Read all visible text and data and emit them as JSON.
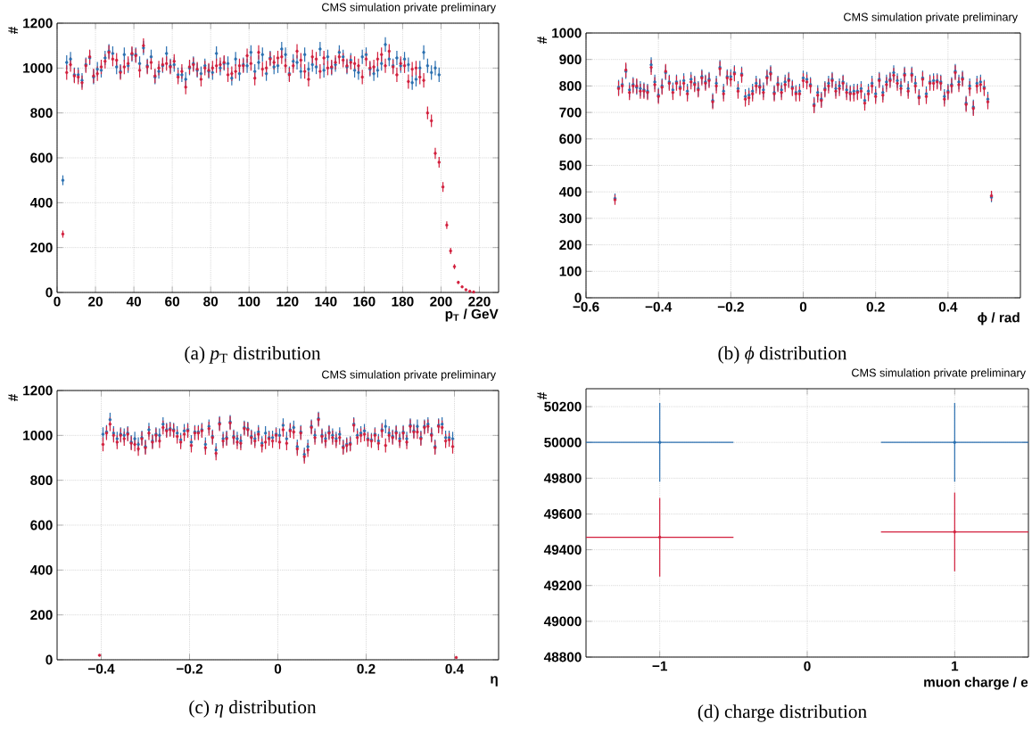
{
  "chart_data": [
    {
      "type": "scatter",
      "title": "CMS simulation private preliminary",
      "xlabel": "p$_{T}$ / GeV",
      "ylabel": "#",
      "annotations": [
        "(a) *p*$_{T}$ distribution"
      ],
      "xlim": [
        0,
        230
      ],
      "ylim": [
        0,
        1200
      ],
      "xticks": [
        0,
        20,
        40,
        60,
        80,
        100,
        120,
        140,
        160,
        180,
        200,
        220
      ],
      "yticks": [
        0,
        200,
        400,
        600,
        800,
        1000,
        1200
      ],
      "grid": true,
      "series": [
        {
          "color": "#2a6fb0",
          "x": [
            3,
            5,
            7,
            9,
            11,
            13,
            15,
            17,
            19,
            21,
            23,
            25,
            27,
            29,
            31,
            33,
            35,
            37,
            39,
            41,
            43,
            45,
            47,
            49,
            51,
            53,
            55,
            57,
            59,
            61,
            63,
            65,
            67,
            69,
            71,
            73,
            75,
            77,
            79,
            81,
            83,
            85,
            87,
            89,
            91,
            93,
            95,
            97,
            99,
            101,
            103,
            105,
            107,
            109,
            111,
            113,
            115,
            117,
            119,
            121,
            123,
            125,
            127,
            129,
            131,
            133,
            135,
            137,
            139,
            141,
            143,
            145,
            147,
            149,
            151,
            153,
            155,
            157,
            159,
            161,
            163,
            165,
            167,
            169,
            171,
            173,
            175,
            177,
            179,
            181,
            183,
            185,
            187,
            189,
            191,
            193,
            195,
            197,
            199
          ],
          "values": [
            500,
            1025,
            1040,
            970,
            970,
            945,
            1015,
            1045,
            960,
            995,
            990,
            1045,
            1075,
            1065,
            1005,
            985,
            1060,
            1010,
            1060,
            1060,
            1020,
            1090,
            1010,
            1050,
            960,
            985,
            1010,
            1065,
            1010,
            1015,
            970,
            970,
            950,
            1000,
            1020,
            990,
            975,
            1010,
            985,
            980,
            1065,
            1000,
            1020,
            1020,
            955,
            1040,
            975,
            1015,
            1010,
            1070,
            985,
            1025,
            1060,
            975,
            1045,
            1005,
            1010,
            1085,
            1060,
            975,
            1030,
            1025,
            985,
            1060,
            995,
            1015,
            1005,
            1085,
            990,
            1050,
            1000,
            1015,
            1070,
            1050,
            1005,
            1035,
            990,
            980,
            1050,
            1060,
            995,
            975,
            990,
            1020,
            1105,
            1040,
            1010,
            1045,
            1010,
            1040,
            1015,
            935,
            950,
            1000,
            1070,
            1010,
            980,
            1000,
            970
          ],
          "errors": [
            22,
            32,
            32,
            32,
            32,
            32,
            32,
            32,
            32,
            32,
            32,
            32,
            32,
            32,
            32,
            32,
            32,
            32,
            32,
            32,
            32,
            32,
            32,
            32,
            32,
            32,
            32,
            32,
            32,
            32,
            32,
            32,
            32,
            32,
            32,
            32,
            32,
            32,
            32,
            32,
            32,
            32,
            32,
            32,
            32,
            32,
            32,
            32,
            32,
            32,
            32,
            32,
            32,
            32,
            32,
            32,
            32,
            32,
            32,
            32,
            32,
            32,
            32,
            32,
            32,
            32,
            32,
            32,
            32,
            32,
            32,
            32,
            32,
            32,
            32,
            32,
            32,
            32,
            32,
            32,
            32,
            32,
            32,
            32,
            32,
            32,
            32,
            32,
            32,
            32,
            32,
            32,
            32,
            32,
            32,
            32,
            32,
            32,
            32
          ]
        },
        {
          "color": "#d21f3c",
          "x": [
            3,
            5,
            7,
            9,
            11,
            13,
            15,
            17,
            19,
            21,
            23,
            25,
            27,
            29,
            31,
            33,
            35,
            37,
            39,
            41,
            43,
            45,
            47,
            49,
            51,
            53,
            55,
            57,
            59,
            61,
            63,
            65,
            67,
            69,
            71,
            73,
            75,
            77,
            79,
            81,
            83,
            85,
            87,
            89,
            91,
            93,
            95,
            97,
            99,
            101,
            103,
            105,
            107,
            109,
            111,
            113,
            115,
            117,
            119,
            121,
            123,
            125,
            127,
            129,
            131,
            133,
            135,
            137,
            139,
            141,
            143,
            145,
            147,
            149,
            151,
            153,
            155,
            157,
            159,
            161,
            163,
            165,
            167,
            169,
            171,
            173,
            175,
            177,
            179,
            181,
            183,
            185,
            187,
            189,
            191,
            193,
            195,
            197,
            199,
            201,
            203,
            205,
            207,
            209,
            211,
            213,
            215,
            217
          ],
          "values": [
            260,
            980,
            1015,
            965,
            960,
            935,
            1010,
            1050,
            965,
            975,
            1005,
            1030,
            1070,
            1040,
            1035,
            980,
            1005,
            1020,
            1065,
            1055,
            990,
            1100,
            1005,
            1025,
            965,
            1000,
            1015,
            1020,
            1005,
            1030,
            960,
            985,
            915,
            1005,
            1015,
            995,
            950,
            1000,
            990,
            1000,
            1010,
            1015,
            1025,
            970,
            975,
            985,
            1010,
            1010,
            1055,
            1020,
            955,
            1070,
            995,
            1000,
            1040,
            1025,
            1045,
            1050,
            1010,
            970,
            1010,
            1075,
            1035,
            985,
            950,
            1050,
            1040,
            985,
            1045,
            1000,
            1005,
            1025,
            1050,
            1035,
            1010,
            1025,
            1020,
            1010,
            960,
            1040,
            1000,
            1005,
            1040,
            1060,
            1010,
            1075,
            1005,
            970,
            1020,
            1010,
            940,
            995,
            1000,
            960,
            945,
            800,
            765,
            620,
            580,
            470,
            300,
            185,
            115,
            45,
            25,
            12,
            5,
            2
          ],
          "errors": [
            16,
            32,
            32,
            32,
            32,
            32,
            32,
            32,
            32,
            32,
            32,
            32,
            32,
            32,
            32,
            32,
            32,
            32,
            32,
            32,
            32,
            32,
            32,
            32,
            32,
            32,
            32,
            32,
            32,
            32,
            32,
            32,
            32,
            32,
            32,
            32,
            32,
            32,
            32,
            32,
            32,
            32,
            32,
            32,
            32,
            32,
            32,
            32,
            32,
            32,
            32,
            32,
            32,
            32,
            32,
            32,
            32,
            32,
            32,
            32,
            32,
            32,
            32,
            32,
            32,
            32,
            32,
            32,
            32,
            32,
            32,
            32,
            32,
            32,
            32,
            32,
            32,
            32,
            32,
            32,
            32,
            32,
            32,
            32,
            32,
            32,
            32,
            32,
            32,
            32,
            32,
            32,
            32,
            32,
            32,
            28,
            28,
            25,
            24,
            22,
            17,
            14,
            11,
            7,
            null,
            null,
            null,
            null
          ]
        }
      ]
    },
    {
      "type": "scatter",
      "title": "CMS simulation private preliminary",
      "xlabel": "ϕ / rad",
      "ylabel": "#",
      "annotations": [
        "(b) *ϕ* distribution"
      ],
      "xlim": [
        -0.6,
        0.6
      ],
      "ylim": [
        0,
        1000
      ],
      "xticks": [
        {
          "value": -0.6,
          "label": "−0.6"
        },
        {
          "value": -0.4,
          "label": "−0.4"
        },
        {
          "value": -0.2,
          "label": "−0.2"
        },
        0,
        0.2,
        0.4
      ],
      "yticks": [
        0,
        100,
        200,
        300,
        400,
        500,
        600,
        700,
        800,
        900,
        1000
      ],
      "grid": true,
      "x": [
        -0.52,
        -0.51,
        -0.5,
        -0.49,
        -0.48,
        -0.47,
        -0.46,
        -0.45,
        -0.44,
        -0.43,
        -0.42,
        -0.41,
        -0.4,
        -0.39,
        -0.38,
        -0.37,
        -0.36,
        -0.35,
        -0.34,
        -0.33,
        -0.32,
        -0.31,
        -0.3,
        -0.29,
        -0.28,
        -0.27,
        -0.26,
        -0.25,
        -0.24,
        -0.23,
        -0.22,
        -0.21,
        -0.2,
        -0.19,
        -0.18,
        -0.17,
        -0.16,
        -0.15,
        -0.14,
        -0.13,
        -0.12,
        -0.11,
        -0.1,
        -0.09,
        -0.08,
        -0.07,
        -0.06,
        -0.05,
        -0.04,
        -0.03,
        -0.02,
        -0.01,
        0,
        0.01,
        0.02,
        0.03,
        0.04,
        0.05,
        0.06,
        0.07,
        0.08,
        0.09,
        0.1,
        0.11,
        0.12,
        0.13,
        0.14,
        0.15,
        0.16,
        0.17,
        0.18,
        0.19,
        0.2,
        0.21,
        0.22,
        0.23,
        0.24,
        0.25,
        0.26,
        0.27,
        0.28,
        0.29,
        0.3,
        0.31,
        0.32,
        0.33,
        0.34,
        0.35,
        0.36,
        0.37,
        0.38,
        0.39,
        0.4,
        0.41,
        0.42,
        0.43,
        0.44,
        0.45,
        0.46,
        0.47,
        0.48,
        0.49,
        0.5,
        0.51,
        0.52
      ],
      "series": [
        {
          "color": "#2a6fb0",
          "values": [
            375,
            795,
            805,
            855,
            785,
            805,
            795,
            790,
            785,
            780,
            880,
            815,
            765,
            800,
            850,
            815,
            785,
            815,
            795,
            820,
            780,
            825,
            810,
            790,
            835,
            815,
            825,
            745,
            810,
            870,
            780,
            835,
            835,
            850,
            790,
            845,
            760,
            765,
            780,
            810,
            800,
            785,
            835,
            850,
            775,
            810,
            785,
            815,
            825,
            795,
            775,
            780,
            830,
            825,
            805,
            730,
            775,
            750,
            790,
            810,
            825,
            790,
            800,
            815,
            785,
            775,
            780,
            780,
            790,
            745,
            780,
            810,
            770,
            825,
            775,
            815,
            825,
            850,
            820,
            800,
            845,
            790,
            845,
            810,
            760,
            830,
            770,
            815,
            820,
            820,
            815,
            760,
            780,
            805,
            855,
            815,
            830,
            735,
            800,
            720,
            810,
            815,
            795,
            750,
            380
          ],
          "errors": [
            19,
            28,
            28,
            28,
            28,
            28,
            28,
            28,
            28,
            28,
            28,
            28,
            28,
            28,
            28,
            28,
            28,
            28,
            28,
            28,
            28,
            28,
            28,
            28,
            28,
            28,
            28,
            28,
            28,
            28,
            28,
            28,
            28,
            28,
            28,
            28,
            28,
            28,
            28,
            28,
            28,
            28,
            28,
            28,
            28,
            28,
            28,
            28,
            28,
            28,
            28,
            28,
            28,
            28,
            28,
            28,
            28,
            28,
            28,
            28,
            28,
            28,
            28,
            28,
            28,
            28,
            28,
            28,
            28,
            28,
            28,
            28,
            28,
            28,
            28,
            28,
            28,
            28,
            28,
            28,
            28,
            28,
            28,
            28,
            28,
            28,
            28,
            28,
            28,
            28,
            28,
            28,
            28,
            28,
            28,
            28,
            28,
            28,
            28,
            28,
            28,
            28,
            28,
            28,
            19
          ]
        },
        {
          "color": "#d21f3c",
          "values": [
            370,
            790,
            800,
            860,
            775,
            800,
            800,
            780,
            780,
            775,
            870,
            805,
            760,
            795,
            855,
            810,
            775,
            810,
            790,
            810,
            770,
            815,
            805,
            785,
            830,
            810,
            820,
            740,
            800,
            865,
            770,
            830,
            825,
            845,
            780,
            840,
            750,
            755,
            770,
            800,
            795,
            775,
            830,
            845,
            770,
            805,
            775,
            805,
            820,
            790,
            770,
            770,
            820,
            815,
            800,
            725,
            765,
            745,
            785,
            800,
            820,
            780,
            790,
            810,
            775,
            770,
            770,
            775,
            780,
            735,
            770,
            800,
            760,
            820,
            765,
            805,
            820,
            840,
            810,
            790,
            840,
            780,
            840,
            800,
            755,
            825,
            760,
            810,
            810,
            815,
            810,
            750,
            775,
            800,
            850,
            805,
            825,
            730,
            790,
            715,
            800,
            805,
            790,
            740,
            385
          ],
          "errors": [
            19,
            28,
            28,
            28,
            28,
            28,
            28,
            28,
            28,
            28,
            28,
            28,
            28,
            28,
            28,
            28,
            28,
            28,
            28,
            28,
            28,
            28,
            28,
            28,
            28,
            28,
            28,
            28,
            28,
            28,
            28,
            28,
            28,
            28,
            28,
            28,
            28,
            28,
            28,
            28,
            28,
            28,
            28,
            28,
            28,
            28,
            28,
            28,
            28,
            28,
            28,
            28,
            28,
            28,
            28,
            28,
            28,
            28,
            28,
            28,
            28,
            28,
            28,
            28,
            28,
            28,
            28,
            28,
            28,
            28,
            28,
            28,
            28,
            28,
            28,
            28,
            28,
            28,
            28,
            28,
            28,
            28,
            28,
            28,
            28,
            28,
            28,
            28,
            28,
            28,
            28,
            28,
            28,
            28,
            28,
            28,
            28,
            28,
            28,
            28,
            28,
            28,
            28,
            28,
            19
          ]
        }
      ]
    },
    {
      "type": "scatter",
      "title": "CMS simulation private preliminary",
      "xlabel": "η",
      "ylabel": "#",
      "annotations": [
        "(c) *η* distribution"
      ],
      "xlim": [
        -0.5,
        0.5
      ],
      "ylim": [
        0,
        1200
      ],
      "xticks": [
        {
          "value": -0.4,
          "label": "−0.4"
        },
        {
          "value": -0.2,
          "label": "−0.2"
        },
        0,
        0.2,
        0.4
      ],
      "yticks": [
        0,
        200,
        400,
        600,
        800,
        1000,
        1200
      ],
      "grid": true,
      "series": [
        {
          "color": "#2a6fb0",
          "x": [
            -0.396,
            -0.388,
            -0.38,
            -0.372,
            -0.364,
            -0.356,
            -0.348,
            -0.34,
            -0.332,
            -0.324,
            -0.316,
            -0.308,
            -0.3,
            -0.292,
            -0.284,
            -0.276,
            -0.268,
            -0.26,
            -0.252,
            -0.244,
            -0.236,
            -0.228,
            -0.22,
            -0.212,
            -0.204,
            -0.196,
            -0.188,
            -0.18,
            -0.172,
            -0.164,
            -0.156,
            -0.148,
            -0.14,
            -0.132,
            -0.124,
            -0.116,
            -0.108,
            -0.1,
            -0.092,
            -0.084,
            -0.076,
            -0.068,
            -0.06,
            -0.052,
            -0.044,
            -0.036,
            -0.028,
            -0.02,
            -0.012,
            -0.004,
            0.004,
            0.012,
            0.02,
            0.028,
            0.036,
            0.044,
            0.052,
            0.06,
            0.068,
            0.076,
            0.084,
            0.092,
            0.1,
            0.108,
            0.116,
            0.124,
            0.132,
            0.14,
            0.148,
            0.156,
            0.164,
            0.172,
            0.18,
            0.188,
            0.196,
            0.204,
            0.212,
            0.22,
            0.228,
            0.236,
            0.244,
            0.252,
            0.26,
            0.268,
            0.276,
            0.284,
            0.292,
            0.3,
            0.308,
            0.316,
            0.324,
            0.332,
            0.34,
            0.348,
            0.356,
            0.364,
            0.372,
            0.38,
            0.388,
            0.396
          ],
          "values": [
            1005,
            1015,
            1070,
            1010,
            985,
            1005,
            1000,
            1010,
            970,
            985,
            960,
            990,
            950,
            1025,
            975,
            1005,
            1000,
            1050,
            1025,
            1030,
            1025,
            1010,
            980,
            1020,
            1025,
            970,
            1015,
            1015,
            1025,
            960,
            1040,
            995,
            935,
            1055,
            985,
            990,
            1060,
            995,
            985,
            975,
            1035,
            1030,
            995,
            985,
            1015,
            965,
            1010,
            990,
            990,
            1005,
            1000,
            1045,
            985,
            1025,
            1035,
            950,
            1015,
            915,
            950,
            1040,
            1000,
            1075,
            1000,
            985,
            1015,
            1000,
            985,
            1005,
            950,
            960,
            965,
            1050,
            1000,
            1010,
            1020,
            985,
            980,
            1005,
            975,
            1025,
            1040,
            1010,
            995,
            1015,
            985,
            1015,
            985,
            1045,
            1020,
            1040,
            990,
            1040,
            1050,
            1005,
            950,
            1045,
            1050,
            990,
            990,
            985
          ],
          "errors": [
            31,
            31,
            31,
            31,
            31,
            31,
            31,
            31,
            31,
            31,
            31,
            31,
            31,
            31,
            31,
            31,
            31,
            31,
            31,
            31,
            31,
            31,
            31,
            31,
            31,
            31,
            31,
            31,
            31,
            31,
            31,
            31,
            31,
            31,
            31,
            31,
            31,
            31,
            31,
            31,
            31,
            31,
            31,
            31,
            31,
            31,
            31,
            31,
            31,
            31,
            31,
            31,
            31,
            31,
            31,
            31,
            31,
            31,
            31,
            31,
            31,
            31,
            31,
            31,
            31,
            31,
            31,
            31,
            31,
            31,
            31,
            31,
            31,
            31,
            31,
            31,
            31,
            31,
            31,
            31,
            31,
            31,
            31,
            31,
            31,
            31,
            31,
            31,
            31,
            31,
            31,
            31,
            31,
            31,
            31,
            31,
            31,
            31,
            31,
            31
          ]
        },
        {
          "color": "#d21f3c",
          "x": [
            -0.404,
            -0.396,
            -0.388,
            -0.38,
            -0.372,
            -0.364,
            -0.356,
            -0.348,
            -0.34,
            -0.332,
            -0.324,
            -0.316,
            -0.308,
            -0.3,
            -0.292,
            -0.284,
            -0.276,
            -0.268,
            -0.26,
            -0.252,
            -0.244,
            -0.236,
            -0.228,
            -0.22,
            -0.212,
            -0.204,
            -0.196,
            -0.188,
            -0.18,
            -0.172,
            -0.164,
            -0.156,
            -0.148,
            -0.14,
            -0.132,
            -0.124,
            -0.116,
            -0.108,
            -0.1,
            -0.092,
            -0.084,
            -0.076,
            -0.068,
            -0.06,
            -0.052,
            -0.044,
            -0.036,
            -0.028,
            -0.02,
            -0.012,
            -0.004,
            0.004,
            0.012,
            0.02,
            0.028,
            0.036,
            0.044,
            0.052,
            0.06,
            0.068,
            0.076,
            0.084,
            0.092,
            0.1,
            0.108,
            0.116,
            0.124,
            0.132,
            0.14,
            0.148,
            0.156,
            0.164,
            0.172,
            0.18,
            0.188,
            0.196,
            0.204,
            0.212,
            0.22,
            0.228,
            0.236,
            0.244,
            0.252,
            0.26,
            0.268,
            0.276,
            0.284,
            0.292,
            0.3,
            0.308,
            0.316,
            0.324,
            0.332,
            0.34,
            0.348,
            0.356,
            0.364,
            0.372,
            0.38,
            0.388,
            0.396,
            0.404
          ],
          "values": [
            20,
            960,
            1010,
            1050,
            1000,
            970,
            1000,
            985,
            1005,
            965,
            960,
            940,
            985,
            945,
            1010,
            970,
            1000,
            975,
            1035,
            1020,
            1025,
            1020,
            995,
            970,
            1005,
            1020,
            955,
            1010,
            1010,
            1020,
            945,
            1030,
            990,
            920,
            1050,
            975,
            985,
            1055,
            990,
            970,
            965,
            1030,
            1025,
            990,
            975,
            1005,
            955,
            970,
            985,
            975,
            1000,
            970,
            1025,
            965,
            1020,
            1015,
            940,
            1010,
            905,
            935,
            1035,
            990,
            1070,
            995,
            975,
            1010,
            990,
            975,
            990,
            945,
            955,
            960,
            1045,
            990,
            1000,
            1005,
            980,
            975,
            1000,
            965,
            1020,
            955,
            1000,
            990,
            1010,
            975,
            1010,
            970,
            1040,
            1015,
            1015,
            985,
            1035,
            1040,
            1000,
            945,
            1040,
            1035,
            975,
            980,
            950,
            10
          ],
          "errors": [
            null,
            31,
            31,
            31,
            31,
            31,
            31,
            31,
            31,
            31,
            31,
            31,
            31,
            31,
            31,
            31,
            31,
            31,
            31,
            31,
            31,
            31,
            31,
            31,
            31,
            31,
            31,
            31,
            31,
            31,
            31,
            31,
            31,
            31,
            31,
            31,
            31,
            31,
            31,
            31,
            31,
            31,
            31,
            31,
            31,
            31,
            31,
            31,
            31,
            31,
            31,
            31,
            31,
            31,
            31,
            31,
            31,
            31,
            31,
            31,
            31,
            31,
            31,
            31,
            31,
            31,
            31,
            31,
            31,
            31,
            31,
            31,
            31,
            31,
            31,
            31,
            31,
            31,
            31,
            31,
            31,
            31,
            31,
            31,
            31,
            31,
            31,
            31,
            31,
            31,
            31,
            31,
            31,
            31,
            31,
            31,
            31,
            31,
            31,
            31,
            31,
            null
          ]
        }
      ]
    },
    {
      "type": "scatter",
      "title": "CMS simulation private preliminary",
      "xlabel": "muon charge / e",
      "ylabel": "#",
      "annotations": [
        "(d) charge distribution"
      ],
      "xlim": [
        -1.5,
        1.5
      ],
      "ylim": [
        48800,
        50300
      ],
      "xticks": [
        {
          "value": -1,
          "label": "−1"
        },
        0,
        1
      ],
      "yticks": [
        48800,
        49000,
        49200,
        49400,
        49600,
        49800,
        50000,
        50200
      ],
      "grid": true,
      "x": [
        -1,
        1
      ],
      "series": [
        {
          "color": "#2a6fb0",
          "values": [
            50000,
            50000
          ],
          "errors": [
            220,
            220
          ],
          "xerrors": [
            0.5,
            0.5
          ]
        },
        {
          "color": "#d21f3c",
          "values": [
            49470,
            49500
          ],
          "errors": [
            220,
            220
          ],
          "xerrors": [
            0.5,
            0.5
          ]
        }
      ]
    }
  ]
}
